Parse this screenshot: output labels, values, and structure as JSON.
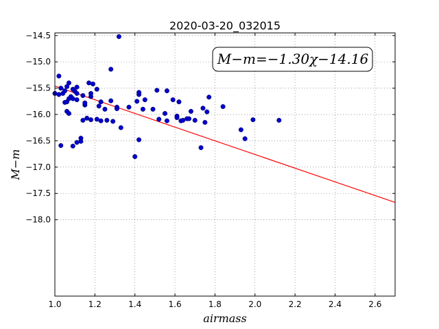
{
  "chart_data": {
    "type": "scatter",
    "title": "2020-03-20_032015",
    "xlabel": "airmass",
    "ylabel": "M−m",
    "xlim": [
      1.0,
      2.7
    ],
    "ylim": [
      -14.45,
      -19.45
    ],
    "y_inverted": true,
    "xticks": [
      "1.0",
      "1.2",
      "1.4",
      "1.6",
      "1.8",
      "2.0",
      "2.2",
      "2.4",
      "2.6"
    ],
    "xtick_values": [
      1.0,
      1.2,
      1.4,
      1.6,
      1.8,
      2.0,
      2.2,
      2.4,
      2.6
    ],
    "yticks": [
      "−14.5",
      "−15.0",
      "−15.5",
      "−16.0",
      "−16.5",
      "−17.0",
      "−17.5",
      "−18.0"
    ],
    "ytick_values": [
      -14.5,
      -15.0,
      -15.5,
      -16.0,
      -16.5,
      -17.0,
      -17.5,
      -18.0
    ],
    "grid": true,
    "annotation": "M−m=−1.30χ−14.16",
    "fit": {
      "slope": -1.3,
      "intercept": -14.16,
      "color": "#ff0000"
    },
    "marker_color": "#0000cc",
    "points": [
      [
        1.0,
        -15.6
      ],
      [
        1.02,
        -15.27
      ],
      [
        1.02,
        -15.62
      ],
      [
        1.03,
        -15.5
      ],
      [
        1.03,
        -16.59
      ],
      [
        1.04,
        -15.6
      ],
      [
        1.05,
        -15.77
      ],
      [
        1.05,
        -15.55
      ],
      [
        1.06,
        -15.76
      ],
      [
        1.06,
        -15.94
      ],
      [
        1.06,
        -15.47
      ],
      [
        1.07,
        -15.4
      ],
      [
        1.07,
        -15.7
      ],
      [
        1.07,
        -15.98
      ],
      [
        1.08,
        -15.66
      ],
      [
        1.09,
        -15.7
      ],
      [
        1.09,
        -15.52
      ],
      [
        1.09,
        -16.6
      ],
      [
        1.1,
        -15.56
      ],
      [
        1.11,
        -15.72
      ],
      [
        1.11,
        -15.6
      ],
      [
        1.11,
        -15.48
      ],
      [
        1.11,
        -16.53
      ],
      [
        1.13,
        -16.45
      ],
      [
        1.13,
        -16.51
      ],
      [
        1.14,
        -15.64
      ],
      [
        1.14,
        -16.11
      ],
      [
        1.15,
        -15.82
      ],
      [
        1.15,
        -15.78
      ],
      [
        1.16,
        -16.07
      ],
      [
        1.17,
        -15.4
      ],
      [
        1.18,
        -15.66
      ],
      [
        1.18,
        -15.6
      ],
      [
        1.18,
        -16.1
      ],
      [
        1.19,
        -15.42
      ],
      [
        1.21,
        -15.52
      ],
      [
        1.21,
        -16.09
      ],
      [
        1.22,
        -15.84
      ],
      [
        1.23,
        -16.12
      ],
      [
        1.23,
        -15.76
      ],
      [
        1.25,
        -15.9
      ],
      [
        1.26,
        -16.11
      ],
      [
        1.28,
        -15.14
      ],
      [
        1.28,
        -15.74
      ],
      [
        1.29,
        -16.13
      ],
      [
        1.31,
        -15.86
      ],
      [
        1.31,
        -15.89
      ],
      [
        1.32,
        -14.52
      ],
      [
        1.33,
        -16.25
      ],
      [
        1.37,
        -15.86
      ],
      [
        1.4,
        -16.8
      ],
      [
        1.41,
        -15.75
      ],
      [
        1.42,
        -15.62
      ],
      [
        1.42,
        -15.58
      ],
      [
        1.42,
        -16.48
      ],
      [
        1.44,
        -15.9
      ],
      [
        1.45,
        -15.72
      ],
      [
        1.49,
        -15.9
      ],
      [
        1.51,
        -15.54
      ],
      [
        1.52,
        -16.09
      ],
      [
        1.55,
        -15.98
      ],
      [
        1.56,
        -15.55
      ],
      [
        1.56,
        -16.12
      ],
      [
        1.59,
        -15.72
      ],
      [
        1.61,
        -16.03
      ],
      [
        1.61,
        -16.06
      ],
      [
        1.62,
        -15.76
      ],
      [
        1.63,
        -16.12
      ],
      [
        1.64,
        -16.11
      ],
      [
        1.66,
        -16.08
      ],
      [
        1.67,
        -16.08
      ],
      [
        1.68,
        -15.94
      ],
      [
        1.7,
        -16.11
      ],
      [
        1.73,
        -16.63
      ],
      [
        1.74,
        -15.88
      ],
      [
        1.75,
        -16.15
      ],
      [
        1.76,
        -15.95
      ],
      [
        1.77,
        -15.67
      ],
      [
        1.84,
        -15.85
      ],
      [
        1.93,
        -16.29
      ],
      [
        1.95,
        -16.46
      ],
      [
        1.99,
        -16.1
      ],
      [
        2.12,
        -16.11
      ]
    ]
  }
}
